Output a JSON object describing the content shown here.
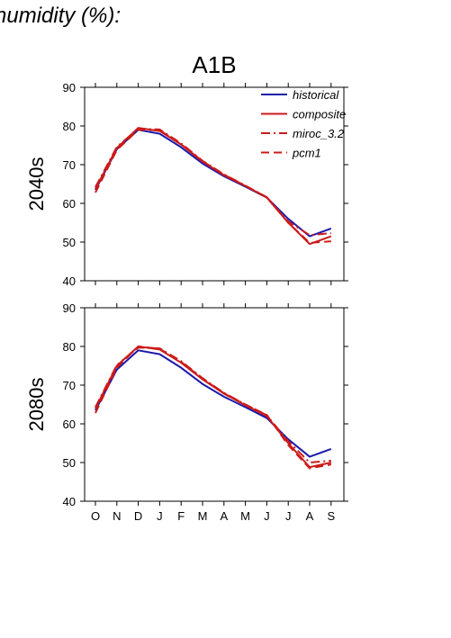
{
  "heading": "humidity (%):",
  "chart_data": {
    "type": "line",
    "title": "A1B",
    "categories": [
      "O",
      "N",
      "D",
      "J",
      "F",
      "M",
      "A",
      "M",
      "J",
      "J",
      "A",
      "S"
    ],
    "ylim": [
      40,
      90
    ],
    "yticks": [
      40,
      50,
      60,
      70,
      80,
      90
    ],
    "grid": false,
    "legend_position": "top-right",
    "colors": {
      "historical": "#1a1aaa",
      "model": "#cc1a1a"
    },
    "panels": [
      {
        "ylabel": "2040s",
        "series": [
          {
            "name": "historical",
            "style": "solid",
            "color": "#1a1aaa",
            "values": [
              63.5,
              74.0,
              79.0,
              78.0,
              74.5,
              70.3,
              67.0,
              64.3,
              61.5,
              56.0,
              51.5,
              53.5
            ]
          },
          {
            "name": "composite",
            "style": "solid",
            "color": "#cc1a1a",
            "values": [
              63.8,
              74.3,
              79.5,
              78.7,
              75.2,
              70.8,
              67.3,
              64.5,
              61.5,
              55.0,
              49.5,
              51.5
            ]
          },
          {
            "name": "miroc_3.2",
            "style": "dashdot",
            "color": "#cc1a1a",
            "values": [
              64.2,
              74.6,
              79.3,
              79.1,
              75.5,
              71.0,
              67.5,
              64.6,
              61.6,
              55.3,
              51.8,
              52.3
            ]
          },
          {
            "name": "pcm1",
            "style": "dashed",
            "color": "#cc1a1a",
            "values": [
              62.8,
              73.8,
              79.0,
              78.9,
              75.3,
              70.9,
              67.4,
              64.5,
              61.6,
              55.0,
              49.8,
              50.2
            ]
          }
        ]
      },
      {
        "ylabel": "2080s",
        "series": [
          {
            "name": "historical",
            "style": "solid",
            "color": "#1a1aaa",
            "values": [
              63.5,
              74.0,
              79.0,
              78.0,
              74.5,
              70.3,
              67.0,
              64.3,
              61.5,
              56.0,
              51.5,
              53.5
            ]
          },
          {
            "name": "composite",
            "style": "solid",
            "color": "#cc1a1a",
            "values": [
              64.0,
              75.0,
              80.0,
              79.2,
              75.8,
              71.5,
              67.8,
              64.8,
              62.0,
              55.0,
              48.8,
              50.0
            ]
          },
          {
            "name": "miroc_3.2",
            "style": "dashdot",
            "color": "#cc1a1a",
            "values": [
              64.3,
              75.2,
              79.7,
              79.5,
              76.2,
              71.8,
              68.0,
              65.0,
              62.2,
              55.5,
              50.0,
              50.5
            ]
          },
          {
            "name": "pcm1",
            "style": "dashed",
            "color": "#cc1a1a",
            "values": [
              62.8,
              74.5,
              80.0,
              79.4,
              76.0,
              71.7,
              67.9,
              65.0,
              62.3,
              54.5,
              48.5,
              49.5
            ]
          }
        ]
      }
    ]
  }
}
